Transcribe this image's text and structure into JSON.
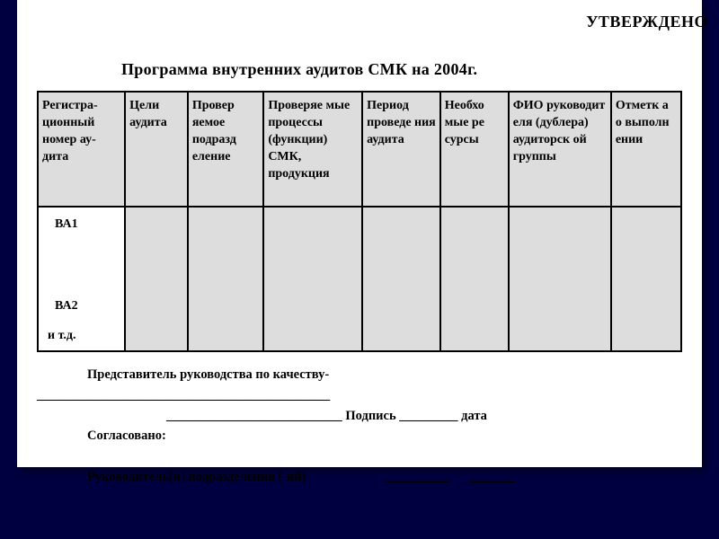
{
  "header": {
    "approval": "УТВЕРЖДЕНО",
    "title": "Программа внутренних аудитов СМК на 2004г."
  },
  "table": {
    "columns": [
      {
        "label": "Регистра-ционный номер ау-дита",
        "width": 92
      },
      {
        "label": "Цели аудита",
        "width": 66
      },
      {
        "label": "Провер яемое подразд еление",
        "width": 80
      },
      {
        "label": "Проверяе мые процессы (функции) СМК, продукция",
        "width": 104
      },
      {
        "label": "Период проведе ния аудита",
        "width": 82
      },
      {
        "label": "Необхо мые ре сурсы",
        "width": 72
      },
      {
        "label": "ФИО руководит еля (дублера) аудиторск ой группы",
        "width": 108
      },
      {
        "label": "Отметк а о выполн ении",
        "width": 74
      }
    ],
    "header_bg": "#dddddd",
    "body_bg": "#dddddd",
    "first_col_bg": "#ffffff",
    "border_color": "#000000",
    "row_labels": {
      "r1": "ВА1",
      "r2": "ВА2",
      "r3": "и т.д."
    }
  },
  "footer": {
    "line1": "Представитель руководства по качеству-",
    "line2": "_____________________________________________",
    "line3_prefix": "___________________________ Подпись _________ дата",
    "line4": "Согласовано:",
    "line5_text": "Руководитель(и) подразделения (-ий)",
    "line5_blank1": "__________",
    "line5_blank2": "_______"
  },
  "colors": {
    "page_bg": "#ffffff",
    "outer_bg": "#000040",
    "text": "#000000"
  },
  "typography": {
    "title_fontsize": 18,
    "header_fontsize": 14,
    "footer_fontsize": 14.5,
    "font_family": "Times New Roman"
  }
}
